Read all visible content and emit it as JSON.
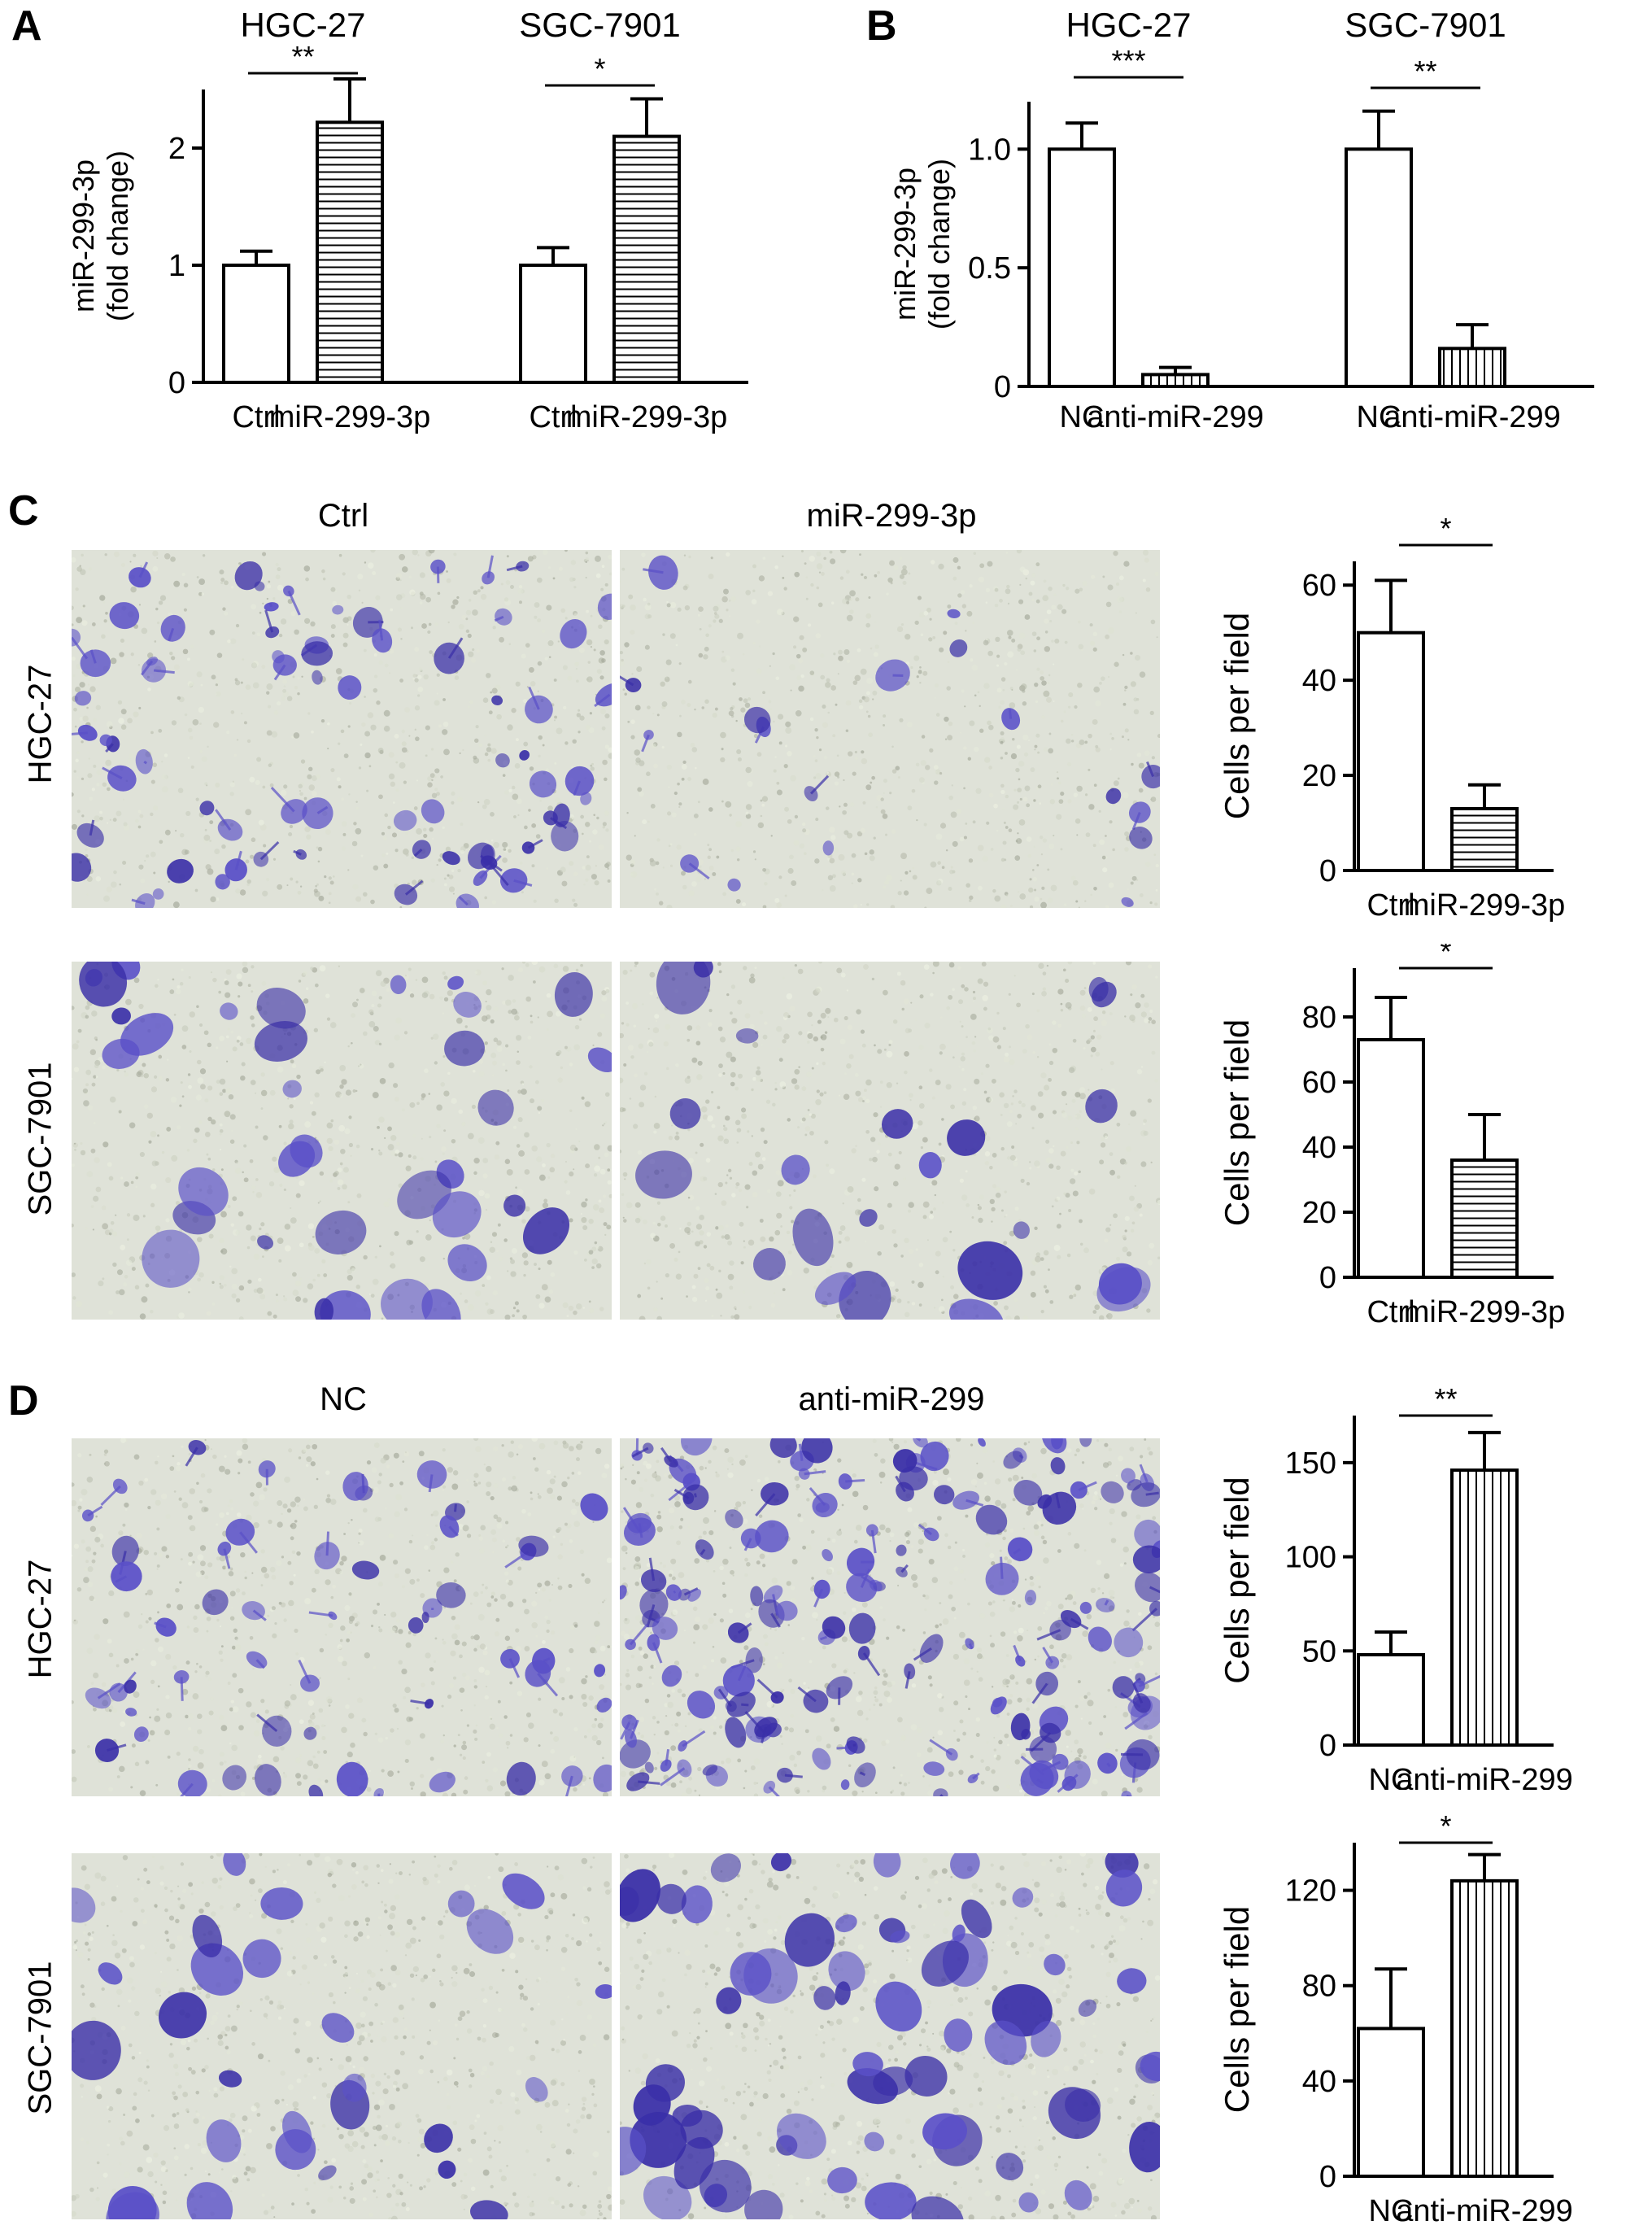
{
  "panels": {
    "A": {
      "letter": "A"
    },
    "B": {
      "letter": "B"
    },
    "C": {
      "letter": "C",
      "col_left": "Ctrl",
      "col_right": "miR-299-3p",
      "row_top": "HGC-27",
      "row_bottom": "SGC-7901"
    },
    "D": {
      "letter": "D",
      "col_left": "NC",
      "col_right": "anti-miR-299",
      "row_top": "HGC-27",
      "row_bottom": "SGC-7901"
    }
  },
  "colors": {
    "stain": "#5a50c8",
    "stain_dark": "#3a2fa8",
    "background": "#dfe2d8",
    "bar": "#ffffff",
    "axis": "#000000"
  },
  "chart_data": [
    {
      "id": "A",
      "type": "bar",
      "ylabel": "miR-299-3p (fold change)",
      "ylim": [
        0,
        2.5
      ],
      "yticks": [
        0,
        1,
        2
      ],
      "groups": [
        {
          "name": "HGC-27",
          "significance": "**"
        },
        {
          "name": "SGC-7901",
          "significance": "*"
        }
      ],
      "bars": [
        {
          "group": 0,
          "category": "Ctrl",
          "value": 1.0,
          "error": 0.12,
          "pattern": "none"
        },
        {
          "group": 0,
          "category": "miR-299-3p",
          "value": 2.22,
          "error": 0.37,
          "pattern": "horizontal"
        },
        {
          "group": 1,
          "category": "Ctrl",
          "value": 1.0,
          "error": 0.15,
          "pattern": "none"
        },
        {
          "group": 1,
          "category": "miR-299-3p",
          "value": 2.1,
          "error": 0.32,
          "pattern": "horizontal"
        }
      ]
    },
    {
      "id": "B",
      "type": "bar",
      "ylabel": "miR-299-3p (fold change)",
      "ylim": [
        0,
        1.2
      ],
      "yticks": [
        0,
        0.5,
        1.0
      ],
      "ytick_labels": [
        "0",
        "0.5",
        "1.0"
      ],
      "groups": [
        {
          "name": "HGC-27",
          "significance": "***"
        },
        {
          "name": "SGC-7901",
          "significance": "**"
        }
      ],
      "bars": [
        {
          "group": 0,
          "category": "NC",
          "value": 1.0,
          "error": 0.11,
          "pattern": "none"
        },
        {
          "group": 0,
          "category": "anti-miR-299",
          "value": 0.05,
          "error": 0.03,
          "pattern": "vertical"
        },
        {
          "group": 1,
          "category": "NC",
          "value": 1.0,
          "error": 0.16,
          "pattern": "none"
        },
        {
          "group": 1,
          "category": "anti-miR-299",
          "value": 0.16,
          "error": 0.1,
          "pattern": "vertical"
        }
      ]
    },
    {
      "id": "C1",
      "type": "bar",
      "ylabel": "Cells per field",
      "ylim": [
        0,
        65
      ],
      "yticks": [
        0,
        20,
        40,
        60
      ],
      "significance": "*",
      "bars": [
        {
          "category": "Ctrl",
          "value": 50,
          "error": 11,
          "pattern": "none"
        },
        {
          "category": "miR-299-3p",
          "value": 13,
          "error": 5,
          "pattern": "horizontal"
        }
      ]
    },
    {
      "id": "C2",
      "type": "bar",
      "ylabel": "Cells per field",
      "ylim": [
        0,
        95
      ],
      "yticks": [
        0,
        20,
        40,
        60,
        80
      ],
      "significance": "*",
      "bars": [
        {
          "category": "Ctrl",
          "value": 73,
          "error": 13,
          "pattern": "none"
        },
        {
          "category": "miR-299-3p",
          "value": 36,
          "error": 14,
          "pattern": "horizontal"
        }
      ]
    },
    {
      "id": "D1",
      "type": "bar",
      "ylabel": "Cells per field",
      "ylim": [
        0,
        175
      ],
      "yticks": [
        0,
        50,
        100,
        150
      ],
      "significance": "**",
      "bars": [
        {
          "category": "NC",
          "value": 48,
          "error": 12,
          "pattern": "none"
        },
        {
          "category": "anti-miR-299",
          "value": 146,
          "error": 20,
          "pattern": "vertical"
        }
      ]
    },
    {
      "id": "D2",
      "type": "bar",
      "ylabel": "Cells per field",
      "ylim": [
        0,
        140
      ],
      "yticks": [
        0,
        40,
        80,
        120
      ],
      "significance": "*",
      "bars": [
        {
          "category": "NC",
          "value": 62,
          "error": 25,
          "pattern": "none"
        },
        {
          "category": "anti-miR-299",
          "value": 124,
          "error": 11,
          "pattern": "vertical"
        }
      ]
    }
  ]
}
